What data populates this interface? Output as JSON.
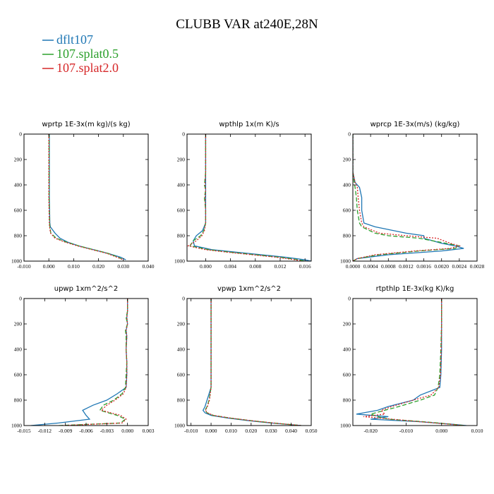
{
  "title": "CLUBB VAR at240E,28N",
  "legend": [
    {
      "name": "dflt107",
      "color": "#1f77b4",
      "dash": ""
    },
    {
      "name": "107.splat0.5",
      "color": "#2ca02c",
      "dash": "6,3"
    },
    {
      "name": "107.splat2.0",
      "color": "#d62728",
      "dash": "2,2"
    }
  ],
  "chart_data": [
    {
      "type": "line",
      "title": "wprtp  1E-3x(m kg)/(s kg)",
      "xlim": [
        -0.01,
        0.04
      ],
      "ylim": [
        1000,
        0
      ],
      "xticks": [
        "-0.010",
        "0.000",
        "0.010",
        "0.020",
        "0.030",
        "0.040"
      ],
      "xtick_values": [
        -0.01,
        0.0,
        0.01,
        0.02,
        0.03,
        0.04
      ],
      "yticks": [
        0,
        200,
        400,
        600,
        800,
        1000
      ],
      "y": [
        0,
        100,
        200,
        300,
        400,
        500,
        600,
        700,
        730,
        780,
        820,
        850,
        880,
        910,
        940,
        970,
        990
      ],
      "series": [
        {
          "name": "dflt107",
          "values": [
            0.0002,
            0.0002,
            0.0002,
            0.0002,
            0.0002,
            0.0002,
            0.0003,
            0.0004,
            0.0006,
            0.0025,
            0.0045,
            0.0075,
            0.012,
            0.018,
            0.024,
            0.029,
            0.031
          ]
        },
        {
          "name": "107.splat0.5",
          "values": [
            0.0001,
            0.0001,
            0.0001,
            0.0001,
            0.0001,
            0.0001,
            0.0002,
            0.0003,
            0.0004,
            0.0008,
            0.003,
            0.007,
            0.012,
            0.018,
            0.024,
            0.028,
            0.03
          ]
        },
        {
          "name": "107.splat2.0",
          "values": [
            0.0,
            0.0,
            0.0,
            0.0,
            0.0,
            0.0,
            0.0001,
            0.0002,
            0.0003,
            0.0007,
            0.0025,
            0.0065,
            0.0115,
            0.0175,
            0.0235,
            0.0275,
            0.03
          ]
        }
      ]
    },
    {
      "type": "line",
      "title": "wpthlp  1x(m K)/s",
      "xlim": [
        -0.003,
        0.017
      ],
      "ylim": [
        1000,
        0
      ],
      "xticks": [
        "0.000",
        "0.004",
        "0.008",
        "0.012",
        "0.016"
      ],
      "xtick_values": [
        0.0,
        0.004,
        0.008,
        0.012,
        0.016
      ],
      "yticks": [
        0,
        200,
        400,
        600,
        800,
        1000
      ],
      "y": [
        0,
        100,
        200,
        300,
        400,
        440,
        500,
        600,
        700,
        760,
        800,
        840,
        880,
        910,
        930,
        950,
        970,
        990,
        1000
      ],
      "series": [
        {
          "name": "dflt107",
          "values": [
            0.0,
            0.0,
            0.0,
            0.0,
            0.0,
            0.0,
            0.0,
            0.0,
            0.0,
            -0.0005,
            -0.0015,
            -0.002,
            -0.0018,
            0.001,
            0.005,
            0.009,
            0.013,
            0.016,
            0.017
          ]
        },
        {
          "name": "107.splat0.5",
          "values": [
            0.0,
            0.0,
            0.0,
            0.0,
            -0.0002,
            0.0,
            -0.0002,
            0.0,
            0.0,
            -0.0003,
            -0.0008,
            -0.002,
            -0.0025,
            0.0005,
            0.004,
            0.008,
            0.012,
            0.015,
            0.016
          ]
        },
        {
          "name": "107.splat2.0",
          "values": [
            0.0,
            0.0,
            0.0,
            0.0,
            -0.0001,
            0.0,
            -0.0001,
            0.0,
            0.0,
            -0.0002,
            -0.0006,
            -0.0015,
            -0.0028,
            0.0,
            0.0035,
            0.0075,
            0.0115,
            0.0145,
            0.0155
          ]
        }
      ]
    },
    {
      "type": "line",
      "title": "wprcp  1E-3x(m/s) (kg/kg)",
      "xlim": [
        0,
        0.0028
      ],
      "ylim": [
        1000,
        0
      ],
      "xticks": [
        "0.0000",
        "0.0004",
        "0.0008",
        "0.0012",
        "0.0016",
        "0.0020",
        "0.0024",
        "0.0028"
      ],
      "xtick_values": [
        0,
        0.0004,
        0.0008,
        0.0012,
        0.0016,
        0.002,
        0.0024,
        0.0028
      ],
      "yticks": [
        0,
        200,
        400,
        600,
        800,
        1000
      ],
      "y": [
        0,
        300,
        380,
        420,
        500,
        600,
        700,
        730,
        780,
        800,
        820,
        860,
        880,
        900,
        920,
        950,
        980,
        1000
      ],
      "series": [
        {
          "name": "dflt107",
          "values": [
            0,
            0,
            5e-05,
            0.00015,
            0.0002,
            0.0002,
            0.00025,
            0.0005,
            0.0012,
            0.0016,
            0.0016,
            0.002,
            0.0023,
            0.0025,
            0.002,
            0.0008,
            0.0001,
            0
          ]
        },
        {
          "name": "107.splat0.5",
          "values": [
            0,
            0,
            3e-05,
            5e-05,
            8e-05,
            0.0001,
            0.00015,
            0.0002,
            0.0005,
            0.0008,
            0.0015,
            0.0021,
            0.0024,
            0.0023,
            0.0015,
            0.0006,
            0.0001,
            0
          ]
        },
        {
          "name": "107.splat2.0",
          "values": [
            0,
            0,
            5e-05,
            0.0001,
            0.00012,
            0.00015,
            0.0002,
            0.00025,
            0.0006,
            0.0012,
            0.0019,
            0.0022,
            0.0024,
            0.0022,
            0.0014,
            0.0005,
            0.0001,
            0
          ]
        }
      ]
    },
    {
      "type": "line",
      "title": "upwp  1xm^2/s^2",
      "xlim": [
        -0.015,
        0.003
      ],
      "ylim": [
        1000,
        0
      ],
      "xticks": [
        "-0.015",
        "-0.012",
        "-0.009",
        "-0.006",
        "-0.003",
        "0.000",
        "0.003"
      ],
      "xtick_values": [
        -0.015,
        -0.012,
        -0.009,
        -0.006,
        -0.003,
        0.0,
        0.003
      ],
      "yticks": [
        0,
        200,
        400,
        600,
        800,
        1000
      ],
      "y": [
        0,
        100,
        150,
        200,
        250,
        300,
        400,
        500,
        600,
        700,
        750,
        800,
        840,
        880,
        920,
        950,
        980,
        1000
      ],
      "series": [
        {
          "name": "dflt107",
          "values": [
            0.0,
            0.0,
            -0.0001,
            0.0,
            -0.0002,
            -0.0001,
            -0.0002,
            -0.0001,
            -0.0001,
            -0.0002,
            -0.0015,
            -0.003,
            -0.005,
            -0.0065,
            -0.006,
            -0.0055,
            -0.01,
            -0.014
          ]
        },
        {
          "name": "107.splat0.5",
          "values": [
            0.0,
            0.0,
            -0.0002,
            0.0,
            -0.0003,
            -0.0002,
            -0.0002,
            -0.0001,
            -0.0002,
            -0.0003,
            -0.0008,
            -0.002,
            -0.0035,
            -0.004,
            -0.0015,
            -0.0003,
            -0.001,
            -0.01
          ]
        },
        {
          "name": "107.splat2.0",
          "values": [
            0.0,
            0.0,
            -0.0001,
            0.0,
            -0.0002,
            -0.0001,
            -0.0002,
            -0.0001,
            -0.0001,
            -0.0002,
            -0.0006,
            -0.0018,
            -0.003,
            -0.0038,
            -0.001,
            -0.0002,
            -0.0008,
            -0.0095
          ]
        }
      ]
    },
    {
      "type": "line",
      "title": "vpwp  1xm^2/s^2",
      "xlim": [
        -0.012,
        0.05
      ],
      "ylim": [
        1000,
        0
      ],
      "xticks": [
        "-0.010",
        "0.000",
        "0.010",
        "0.020",
        "0.030",
        "0.040",
        "0.050"
      ],
      "xtick_values": [
        -0.01,
        0.0,
        0.01,
        0.02,
        0.03,
        0.04,
        0.05
      ],
      "yticks": [
        0,
        200,
        400,
        600,
        800,
        1000
      ],
      "y": [
        0,
        100,
        200,
        300,
        400,
        500,
        600,
        700,
        750,
        800,
        850,
        880,
        900,
        920,
        940,
        960,
        980,
        1000
      ],
      "series": [
        {
          "name": "dflt107",
          "values": [
            0.0,
            0.0,
            0.0,
            0.0,
            0.0,
            0.0,
            0.0,
            0.0,
            -0.001,
            -0.002,
            -0.003,
            -0.004,
            -0.003,
            0.0,
            0.008,
            0.018,
            0.03,
            0.045
          ]
        },
        {
          "name": "107.splat0.5",
          "values": [
            0.0,
            0.0,
            0.0,
            0.0,
            0.0,
            0.0,
            0.0,
            0.0,
            -0.0005,
            -0.001,
            -0.002,
            -0.003,
            -0.002,
            0.001,
            0.009,
            0.019,
            0.031,
            0.045
          ]
        },
        {
          "name": "107.splat2.0",
          "values": [
            0.0,
            0.0,
            0.0,
            0.0,
            0.0,
            0.0,
            0.0,
            0.0,
            -0.0004,
            -0.0008,
            -0.0018,
            -0.0028,
            -0.0018,
            0.0012,
            0.0092,
            0.0192,
            0.0312,
            0.045
          ]
        }
      ]
    },
    {
      "type": "line",
      "title": "rtpthlp  1E-3x(kg K)/kg",
      "xlim": [
        -0.025,
        0.01
      ],
      "ylim": [
        1000,
        0
      ],
      "xticks": [
        "-0.020",
        "-0.010",
        "0.000",
        "0.010"
      ],
      "xtick_values": [
        -0.02,
        -0.01,
        0.0,
        0.01
      ],
      "yticks": [
        0,
        200,
        400,
        600,
        800,
        1000
      ],
      "y": [
        0,
        200,
        400,
        600,
        700,
        760,
        800,
        850,
        880,
        910,
        930,
        950,
        970,
        990,
        1000
      ],
      "series": [
        {
          "name": "dflt107",
          "values": [
            0.0,
            0.0,
            0.0,
            -0.0002,
            -0.0005,
            -0.006,
            -0.008,
            -0.015,
            -0.018,
            -0.024,
            -0.015,
            -0.02,
            -0.006,
            0.003,
            0.007
          ]
        },
        {
          "name": "107.splat0.5",
          "values": [
            0.0,
            0.0,
            -0.0002,
            -0.0005,
            -0.001,
            -0.002,
            -0.006,
            -0.012,
            -0.016,
            -0.02,
            -0.018,
            -0.015,
            -0.005,
            0.003,
            0.0065
          ]
        },
        {
          "name": "107.splat2.0",
          "values": [
            0.0,
            0.0,
            -0.0001,
            -0.0003,
            -0.0008,
            -0.003,
            -0.008,
            -0.014,
            -0.017,
            -0.016,
            -0.022,
            -0.014,
            -0.006,
            0.0025,
            0.006
          ]
        }
      ]
    }
  ]
}
